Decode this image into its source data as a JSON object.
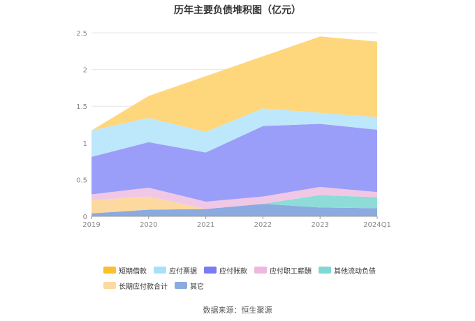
{
  "chart_data": {
    "type": "area",
    "title": "历年主要负债堆积图（亿元）",
    "categories": [
      "2019",
      "2020",
      "2021",
      "2022",
      "2023",
      "2024Q1"
    ],
    "yticks": [
      "0",
      "0.5",
      "1",
      "1.5",
      "2",
      "2.5"
    ],
    "ylim": [
      0,
      2.5
    ],
    "grid": true,
    "legend_position": "bottom",
    "series": [
      {
        "name": "其它",
        "color": "#8aaae0",
        "values": [
          0.04,
          0.09,
          0.1,
          0.17,
          0.12,
          0.11
        ]
      },
      {
        "name": "长期应付款合计",
        "color": "#fdd9a0",
        "values": [
          0.18,
          0.18,
          0.0,
          0.0,
          0.0,
          0.0
        ]
      },
      {
        "name": "其他流动负债",
        "color": "#8ddcd8",
        "values": [
          0.0,
          0.0,
          0.0,
          0.0,
          0.17,
          0.15
        ]
      },
      {
        "name": "应付职工薪酬",
        "color": "#f0c8e6",
        "values": [
          0.08,
          0.12,
          0.1,
          0.1,
          0.11,
          0.07
        ]
      },
      {
        "name": "应付账款",
        "color": "#9b9ef8",
        "values": [
          0.51,
          0.62,
          0.67,
          0.96,
          0.86,
          0.85
        ]
      },
      {
        "name": "应付票据",
        "color": "#bde7fb",
        "values": [
          0.36,
          0.33,
          0.28,
          0.24,
          0.15,
          0.17
        ]
      },
      {
        "name": "短期借款",
        "color": "#fed77d",
        "values": [
          0.0,
          0.3,
          0.76,
          0.71,
          1.04,
          1.03
        ]
      }
    ]
  },
  "legend": {
    "rows": [
      [
        {
          "label": "短期借款",
          "color": "#fbc02d"
        },
        {
          "label": "应付票据",
          "color": "#a8e0fb"
        },
        {
          "label": "应付账款",
          "color": "#7a7cf4"
        },
        {
          "label": "应付职工薪酬",
          "color": "#efb6df"
        },
        {
          "label": "其他流动负债",
          "color": "#7fd8d4"
        }
      ],
      [
        {
          "label": "长期应付款合计",
          "color": "#fdd9a0"
        },
        {
          "label": "其它",
          "color": "#8aaae0"
        }
      ]
    ]
  },
  "source": "数据来源：恒生聚源"
}
